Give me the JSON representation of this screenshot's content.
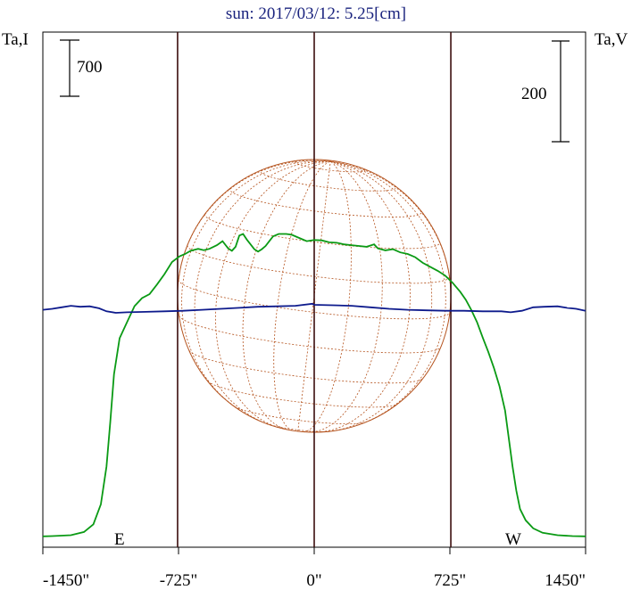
{
  "chart_data": {
    "type": "line",
    "title": "sun: 2017/03/12: 5.25[cm]",
    "left_axis_label": "Ta,I",
    "right_axis_label": "Ta,V",
    "left_scale_bar_label": "700",
    "right_scale_bar_label": "200",
    "east_marker": "E",
    "west_marker": "W",
    "x_ticks": [
      {
        "value": -1450,
        "label": "-1450\""
      },
      {
        "value": -725,
        "label": "-725\""
      },
      {
        "value": 0,
        "label": "0\""
      },
      {
        "value": 725,
        "label": "725\""
      },
      {
        "value": 1450,
        "label": "1450\""
      }
    ],
    "xlim": [
      -1450,
      1450
    ],
    "solar_limb_arcsec": 730,
    "colors": {
      "stokes_i": "#0a9a14",
      "stokes_v": "#0d1a8c",
      "solar_disk": "#b5541f",
      "verticals": "#3b0d0d",
      "title": "#1a237e"
    },
    "series": [
      {
        "name": "Ta,I",
        "axis": "left",
        "points": [
          [
            -1450,
            80
          ],
          [
            -1400,
            83
          ],
          [
            -1300,
            95
          ],
          [
            -1230,
            135
          ],
          [
            -1180,
            230
          ],
          [
            -1140,
            480
          ],
          [
            -1110,
            950
          ],
          [
            -1090,
            1500
          ],
          [
            -1070,
            2100
          ],
          [
            -1040,
            2550
          ],
          [
            -1000,
            2750
          ],
          [
            -960,
            2950
          ],
          [
            -920,
            3050
          ],
          [
            -880,
            3100
          ],
          [
            -840,
            3220
          ],
          [
            -800,
            3350
          ],
          [
            -760,
            3500
          ],
          [
            -720,
            3570
          ],
          [
            -690,
            3600
          ],
          [
            -660,
            3640
          ],
          [
            -620,
            3665
          ],
          [
            -590,
            3648
          ],
          [
            -560,
            3665
          ],
          [
            -520,
            3710
          ],
          [
            -490,
            3760
          ],
          [
            -460,
            3670
          ],
          [
            -440,
            3640
          ],
          [
            -420,
            3690
          ],
          [
            -400,
            3830
          ],
          [
            -380,
            3850
          ],
          [
            -360,
            3780
          ],
          [
            -340,
            3720
          ],
          [
            -320,
            3660
          ],
          [
            -300,
            3630
          ],
          [
            -280,
            3660
          ],
          [
            -260,
            3700
          ],
          [
            -240,
            3760
          ],
          [
            -220,
            3820
          ],
          [
            -190,
            3850
          ],
          [
            -150,
            3850
          ],
          [
            -120,
            3840
          ],
          [
            -80,
            3800
          ],
          [
            -40,
            3760
          ],
          [
            0,
            3775
          ],
          [
            40,
            3770
          ],
          [
            80,
            3745
          ],
          [
            120,
            3740
          ],
          [
            160,
            3720
          ],
          [
            200,
            3710
          ],
          [
            240,
            3700
          ],
          [
            280,
            3690
          ],
          [
            320,
            3720
          ],
          [
            340,
            3670
          ],
          [
            380,
            3645
          ],
          [
            420,
            3660
          ],
          [
            460,
            3620
          ],
          [
            500,
            3600
          ],
          [
            540,
            3560
          ],
          [
            580,
            3490
          ],
          [
            620,
            3440
          ],
          [
            660,
            3390
          ],
          [
            700,
            3330
          ],
          [
            740,
            3240
          ],
          [
            780,
            3130
          ],
          [
            810,
            3030
          ],
          [
            840,
            2900
          ],
          [
            870,
            2750
          ],
          [
            900,
            2560
          ],
          [
            930,
            2380
          ],
          [
            960,
            2180
          ],
          [
            990,
            1950
          ],
          [
            1020,
            1650
          ],
          [
            1040,
            1300
          ],
          [
            1060,
            950
          ],
          [
            1080,
            650
          ],
          [
            1100,
            420
          ],
          [
            1130,
            280
          ],
          [
            1170,
            180
          ],
          [
            1220,
            125
          ],
          [
            1300,
            95
          ],
          [
            1380,
            83
          ],
          [
            1450,
            80
          ]
        ]
      },
      {
        "name": "Ta,V",
        "axis": "right",
        "points": [
          [
            -1450,
            6
          ],
          [
            -1400,
            8
          ],
          [
            -1350,
            11
          ],
          [
            -1300,
            14
          ],
          [
            -1250,
            12
          ],
          [
            -1200,
            13
          ],
          [
            -1150,
            9
          ],
          [
            -1110,
            3
          ],
          [
            -1060,
            0
          ],
          [
            -1000,
            1
          ],
          [
            -900,
            2
          ],
          [
            -800,
            3
          ],
          [
            -700,
            4
          ],
          [
            -600,
            6
          ],
          [
            -500,
            8
          ],
          [
            -400,
            10
          ],
          [
            -300,
            12
          ],
          [
            -200,
            13
          ],
          [
            -100,
            14
          ],
          [
            -10,
            18
          ],
          [
            0,
            16
          ],
          [
            100,
            15
          ],
          [
            200,
            14
          ],
          [
            300,
            11
          ],
          [
            400,
            8
          ],
          [
            500,
            6
          ],
          [
            600,
            5
          ],
          [
            700,
            4
          ],
          [
            800,
            4
          ],
          [
            900,
            3
          ],
          [
            1000,
            3
          ],
          [
            1050,
            1
          ],
          [
            1110,
            4
          ],
          [
            1170,
            11
          ],
          [
            1230,
            12
          ],
          [
            1300,
            13
          ],
          [
            1350,
            10
          ],
          [
            1400,
            8
          ],
          [
            1450,
            4
          ]
        ]
      }
    ]
  }
}
